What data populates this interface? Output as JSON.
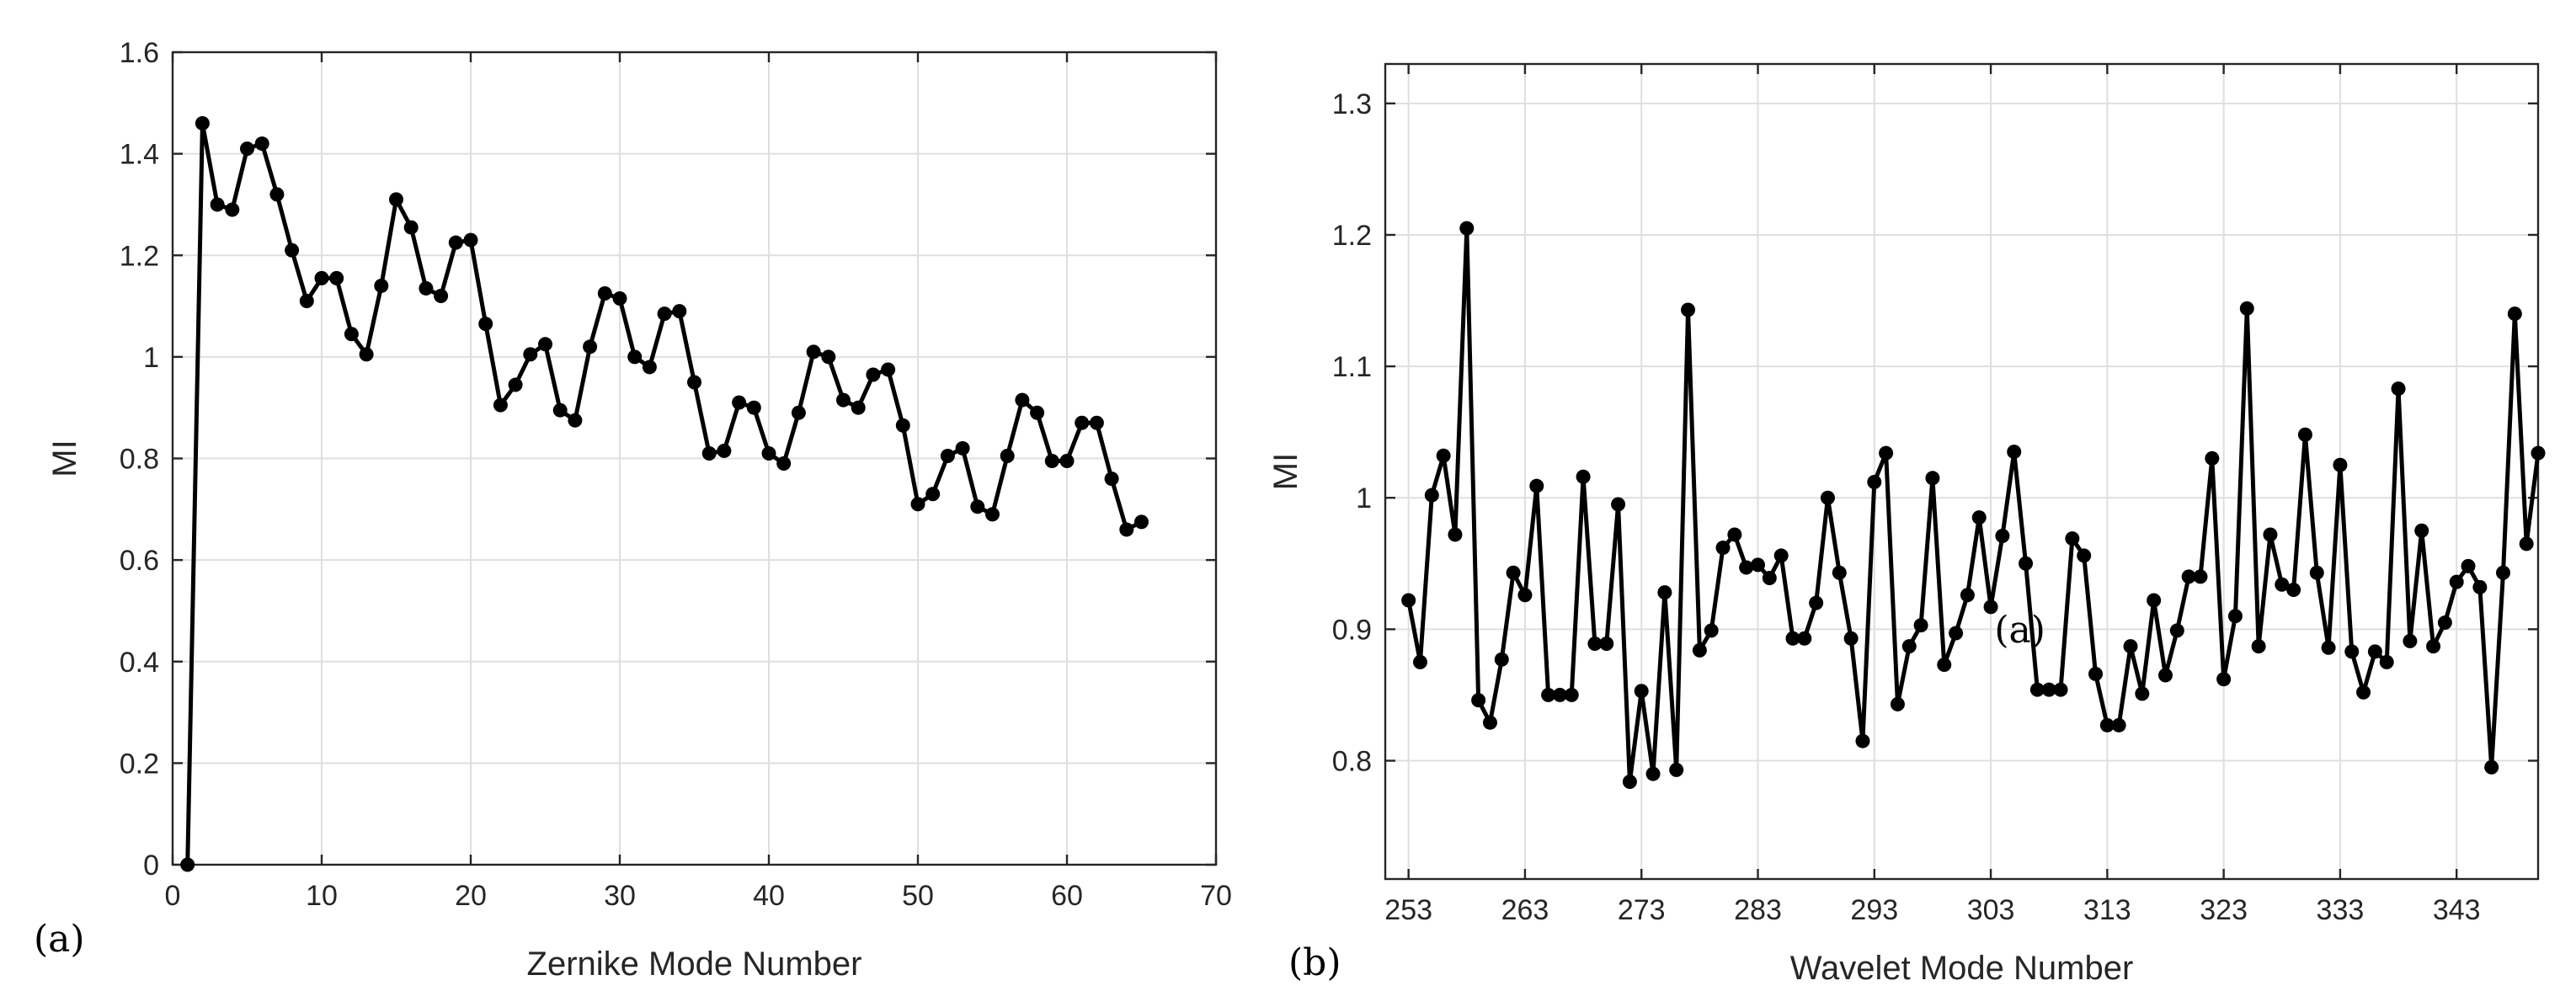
{
  "chart_data": [
    {
      "id": "a",
      "type": "line",
      "panel_label": "(a)",
      "xlabel": "Zernike Mode Number",
      "ylabel": "MI",
      "xlim": [
        0,
        70
      ],
      "ylim": [
        0,
        1.6
      ],
      "xticks": [
        0,
        10,
        20,
        30,
        40,
        50,
        60,
        70
      ],
      "yticks": [
        0,
        0.2,
        0.4,
        0.6,
        0.8,
        1,
        1.2,
        1.4,
        1.6
      ],
      "xtick_labels": [
        "0",
        "10",
        "20",
        "30",
        "40",
        "50",
        "60",
        "70"
      ],
      "ytick_labels": [
        "0",
        "0.2",
        "0.4",
        "0.6",
        "0.8",
        "1",
        "1.2",
        "1.4",
        "1.6"
      ],
      "grid": true,
      "marker": "circle",
      "x": [
        1,
        2,
        3,
        4,
        5,
        6,
        7,
        8,
        9,
        10,
        11,
        12,
        13,
        14,
        15,
        16,
        17,
        18,
        19,
        20,
        21,
        22,
        23,
        24,
        25,
        26,
        27,
        28,
        29,
        30,
        31,
        32,
        33,
        34,
        35,
        36,
        37,
        38,
        39,
        40,
        41,
        42,
        43,
        44,
        45,
        46,
        47,
        48,
        49,
        50,
        51,
        52,
        53,
        54,
        55,
        56,
        57,
        58,
        59,
        60,
        61,
        62,
        63,
        64,
        65
      ],
      "y": [
        0,
        1.46,
        1.3,
        1.29,
        1.41,
        1.42,
        1.32,
        1.21,
        1.11,
        1.155,
        1.155,
        1.045,
        1.005,
        1.14,
        1.31,
        1.255,
        1.135,
        1.12,
        1.225,
        1.23,
        1.065,
        0.905,
        0.945,
        1.005,
        1.025,
        0.895,
        0.875,
        1.02,
        1.125,
        1.115,
        1.0,
        0.98,
        1.085,
        1.09,
        0.95,
        0.81,
        0.815,
        0.91,
        0.9,
        0.81,
        0.79,
        0.89,
        1.01,
        1.0,
        0.915,
        0.9,
        0.965,
        0.975,
        0.865,
        0.71,
        0.73,
        0.805,
        0.82,
        0.705,
        0.69,
        0.805,
        0.915,
        0.89,
        0.795,
        0.795,
        0.87,
        0.87,
        0.76,
        0.66,
        0.675
      ]
    },
    {
      "id": "b",
      "type": "line",
      "panel_label": "(b)",
      "xlabel": "Wavelet Mode Number",
      "ylabel": "MI",
      "xlim": [
        251,
        350
      ],
      "ylim": [
        0.71,
        1.33
      ],
      "xticks": [
        253,
        263,
        273,
        283,
        293,
        303,
        313,
        323,
        333,
        343
      ],
      "yticks": [
        0.8,
        0.9,
        1,
        1.1,
        1.2,
        1.3
      ],
      "xtick_labels": [
        "253",
        "263",
        "273",
        "283",
        "293",
        "303",
        "313",
        "323",
        "333",
        "343"
      ],
      "ytick_labels": [
        "0.8",
        "0.9",
        "1",
        "1.1",
        "1.2",
        "1.3"
      ],
      "grid": true,
      "marker": "circle",
      "annotation": {
        "text": "(a)",
        "x": 305.5,
        "y": 0.899
      },
      "x": [
        253,
        254,
        255,
        256,
        257,
        258,
        259,
        260,
        261,
        262,
        263,
        264,
        265,
        266,
        267,
        268,
        269,
        270,
        271,
        272,
        273,
        274,
        275,
        276,
        277,
        278,
        279,
        280,
        281,
        282,
        283,
        284,
        285,
        286,
        287,
        288,
        289,
        290,
        291,
        292,
        293,
        294,
        295,
        296,
        297,
        298,
        299,
        300,
        301,
        302,
        303,
        304,
        305,
        306,
        307,
        308,
        309,
        310,
        311,
        312,
        313,
        314,
        315,
        316,
        317,
        318,
        319,
        320,
        321,
        322,
        323,
        324,
        325,
        326,
        327,
        328,
        329,
        330,
        331,
        332,
        333,
        334,
        335,
        336,
        337,
        338,
        339,
        340,
        341,
        342,
        343,
        344,
        345,
        346,
        347,
        348,
        349,
        350
      ],
      "y": [
        0.922,
        0.875,
        1.002,
        1.032,
        0.972,
        1.205,
        0.846,
        0.829,
        0.877,
        0.943,
        0.926,
        1.009,
        0.85,
        0.85,
        0.85,
        1.016,
        0.889,
        0.889,
        0.995,
        0.784,
        0.853,
        0.79,
        0.928,
        0.793,
        1.143,
        0.884,
        0.899,
        0.962,
        0.972,
        0.947,
        0.949,
        0.939,
        0.956,
        0.893,
        0.893,
        0.92,
        1.0,
        0.943,
        0.893,
        0.815,
        1.012,
        1.034,
        0.843,
        0.887,
        0.903,
        1.015,
        0.873,
        0.897,
        0.926,
        0.985,
        0.917,
        0.971,
        1.035,
        0.95,
        0.854,
        0.854,
        0.854,
        0.969,
        0.956,
        0.866,
        0.827,
        0.827,
        0.887,
        0.851,
        0.922,
        0.865,
        0.899,
        0.94,
        0.94,
        1.03,
        0.862,
        0.91,
        1.144,
        0.887,
        0.972,
        0.934,
        0.93,
        1.048,
        0.943,
        0.886,
        1.025,
        0.883,
        0.852,
        0.883,
        0.875,
        1.083,
        0.891,
        0.975,
        0.887,
        0.905,
        0.936,
        0.948,
        0.932,
        0.795,
        0.943,
        1.14,
        0.965,
        1.034
      ]
    }
  ]
}
